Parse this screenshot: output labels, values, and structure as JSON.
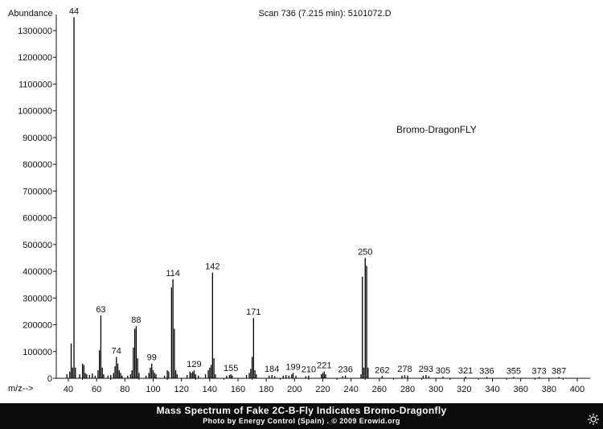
{
  "header": {
    "scan_title": "Scan 736 (7.215 min): 5101072.D",
    "compound_label": "Bromo-DragonFLY"
  },
  "caption": {
    "title": "Mass Spectrum of Fake 2C-B-Fly Indicates Bromo-Dragonfly",
    "credit": "Photo by Energy Control (Spain) . © 2009 Erowid.org"
  },
  "chart_data": {
    "type": "bar",
    "title": "Scan 736 (7.215 min): 5101072.D",
    "xlabel": "m/z-->",
    "ylabel": "Abundance",
    "xlim": [
      32,
      405
    ],
    "ylim": [
      0,
      1400000
    ],
    "x_ticks": [
      40,
      60,
      80,
      100,
      120,
      140,
      160,
      180,
      200,
      220,
      240,
      260,
      280,
      300,
      320,
      340,
      360,
      380,
      400
    ],
    "y_ticks": [
      0,
      100000,
      200000,
      300000,
      400000,
      500000,
      600000,
      700000,
      800000,
      900000,
      1000000,
      1100000,
      1200000,
      1300000
    ],
    "annotation": "Bromo-DragonFLY",
    "grid": false,
    "peak_labels": [
      44,
      63,
      74,
      88,
      99,
      114,
      129,
      142,
      155,
      171,
      184,
      199,
      210,
      221,
      236,
      250,
      262,
      278,
      293,
      305,
      321,
      336,
      355,
      373,
      387
    ],
    "peaks": [
      {
        "mz": 39,
        "abundance": 15000
      },
      {
        "mz": 41,
        "abundance": 25000
      },
      {
        "mz": 42,
        "abundance": 130000
      },
      {
        "mz": 43,
        "abundance": 40000
      },
      {
        "mz": 44,
        "abundance": 1350000
      },
      {
        "mz": 45,
        "abundance": 40000
      },
      {
        "mz": 48,
        "abundance": 15000
      },
      {
        "mz": 50,
        "abundance": 55000
      },
      {
        "mz": 51,
        "abundance": 50000
      },
      {
        "mz": 52,
        "abundance": 20000
      },
      {
        "mz": 53,
        "abundance": 15000
      },
      {
        "mz": 55,
        "abundance": 12000
      },
      {
        "mz": 57,
        "abundance": 18000
      },
      {
        "mz": 59,
        "abundance": 10000
      },
      {
        "mz": 61,
        "abundance": 30000
      },
      {
        "mz": 62,
        "abundance": 105000
      },
      {
        "mz": 63,
        "abundance": 235000
      },
      {
        "mz": 64,
        "abundance": 40000
      },
      {
        "mz": 65,
        "abundance": 15000
      },
      {
        "mz": 68,
        "abundance": 10000
      },
      {
        "mz": 70,
        "abundance": 12000
      },
      {
        "mz": 72,
        "abundance": 20000
      },
      {
        "mz": 73,
        "abundance": 45000
      },
      {
        "mz": 74,
        "abundance": 80000
      },
      {
        "mz": 75,
        "abundance": 55000
      },
      {
        "mz": 76,
        "abundance": 30000
      },
      {
        "mz": 77,
        "abundance": 20000
      },
      {
        "mz": 78,
        "abundance": 10000
      },
      {
        "mz": 82,
        "abundance": 10000
      },
      {
        "mz": 84,
        "abundance": 15000
      },
      {
        "mz": 85,
        "abundance": 30000
      },
      {
        "mz": 86,
        "abundance": 115000
      },
      {
        "mz": 87,
        "abundance": 185000
      },
      {
        "mz": 88,
        "abundance": 195000
      },
      {
        "mz": 89,
        "abundance": 75000
      },
      {
        "mz": 90,
        "abundance": 20000
      },
      {
        "mz": 95,
        "abundance": 10000
      },
      {
        "mz": 97,
        "abundance": 20000
      },
      {
        "mz": 98,
        "abundance": 40000
      },
      {
        "mz": 99,
        "abundance": 55000
      },
      {
        "mz": 100,
        "abundance": 30000
      },
      {
        "mz": 101,
        "abundance": 20000
      },
      {
        "mz": 102,
        "abundance": 15000
      },
      {
        "mz": 108,
        "abundance": 10000
      },
      {
        "mz": 110,
        "abundance": 30000
      },
      {
        "mz": 111,
        "abundance": 25000
      },
      {
        "mz": 113,
        "abundance": 340000
      },
      {
        "mz": 114,
        "abundance": 370000
      },
      {
        "mz": 115,
        "abundance": 185000
      },
      {
        "mz": 116,
        "abundance": 30000
      },
      {
        "mz": 117,
        "abundance": 15000
      },
      {
        "mz": 124,
        "abundance": 12000
      },
      {
        "mz": 126,
        "abundance": 25000
      },
      {
        "mz": 127,
        "abundance": 20000
      },
      {
        "mz": 128,
        "abundance": 25000
      },
      {
        "mz": 129,
        "abundance": 30000
      },
      {
        "mz": 130,
        "abundance": 15000
      },
      {
        "mz": 132,
        "abundance": 10000
      },
      {
        "mz": 137,
        "abundance": 15000
      },
      {
        "mz": 139,
        "abundance": 30000
      },
      {
        "mz": 140,
        "abundance": 40000
      },
      {
        "mz": 141,
        "abundance": 50000
      },
      {
        "mz": 142,
        "abundance": 395000
      },
      {
        "mz": 143,
        "abundance": 75000
      },
      {
        "mz": 144,
        "abundance": 15000
      },
      {
        "mz": 152,
        "abundance": 10000
      },
      {
        "mz": 154,
        "abundance": 12000
      },
      {
        "mz": 155,
        "abundance": 15000
      },
      {
        "mz": 156,
        "abundance": 10000
      },
      {
        "mz": 166,
        "abundance": 12000
      },
      {
        "mz": 168,
        "abundance": 20000
      },
      {
        "mz": 169,
        "abundance": 35000
      },
      {
        "mz": 170,
        "abundance": 80000
      },
      {
        "mz": 171,
        "abundance": 225000
      },
      {
        "mz": 172,
        "abundance": 30000
      },
      {
        "mz": 173,
        "abundance": 15000
      },
      {
        "mz": 182,
        "abundance": 10000
      },
      {
        "mz": 184,
        "abundance": 12000
      },
      {
        "mz": 186,
        "abundance": 8000
      },
      {
        "mz": 192,
        "abundance": 10000
      },
      {
        "mz": 194,
        "abundance": 12000
      },
      {
        "mz": 196,
        "abundance": 10000
      },
      {
        "mz": 198,
        "abundance": 15000
      },
      {
        "mz": 199,
        "abundance": 20000
      },
      {
        "mz": 201,
        "abundance": 10000
      },
      {
        "mz": 208,
        "abundance": 8000
      },
      {
        "mz": 210,
        "abundance": 10000
      },
      {
        "mz": 219,
        "abundance": 15000
      },
      {
        "mz": 220,
        "abundance": 20000
      },
      {
        "mz": 221,
        "abundance": 25000
      },
      {
        "mz": 222,
        "abundance": 15000
      },
      {
        "mz": 234,
        "abundance": 8000
      },
      {
        "mz": 236,
        "abundance": 10000
      },
      {
        "mz": 247,
        "abundance": 15000
      },
      {
        "mz": 248,
        "abundance": 380000
      },
      {
        "mz": 249,
        "abundance": 40000
      },
      {
        "mz": 250,
        "abundance": 450000
      },
      {
        "mz": 251,
        "abundance": 420000
      },
      {
        "mz": 252,
        "abundance": 40000
      },
      {
        "mz": 262,
        "abundance": 8000
      },
      {
        "mz": 276,
        "abundance": 10000
      },
      {
        "mz": 278,
        "abundance": 12000
      },
      {
        "mz": 280,
        "abundance": 10000
      },
      {
        "mz": 291,
        "abundance": 10000
      },
      {
        "mz": 293,
        "abundance": 12000
      },
      {
        "mz": 295,
        "abundance": 8000
      },
      {
        "mz": 305,
        "abundance": 6000
      },
      {
        "mz": 321,
        "abundance": 6000
      },
      {
        "mz": 336,
        "abundance": 5000
      },
      {
        "mz": 355,
        "abundance": 5000
      },
      {
        "mz": 373,
        "abundance": 5000
      },
      {
        "mz": 387,
        "abundance": 5000
      }
    ]
  }
}
